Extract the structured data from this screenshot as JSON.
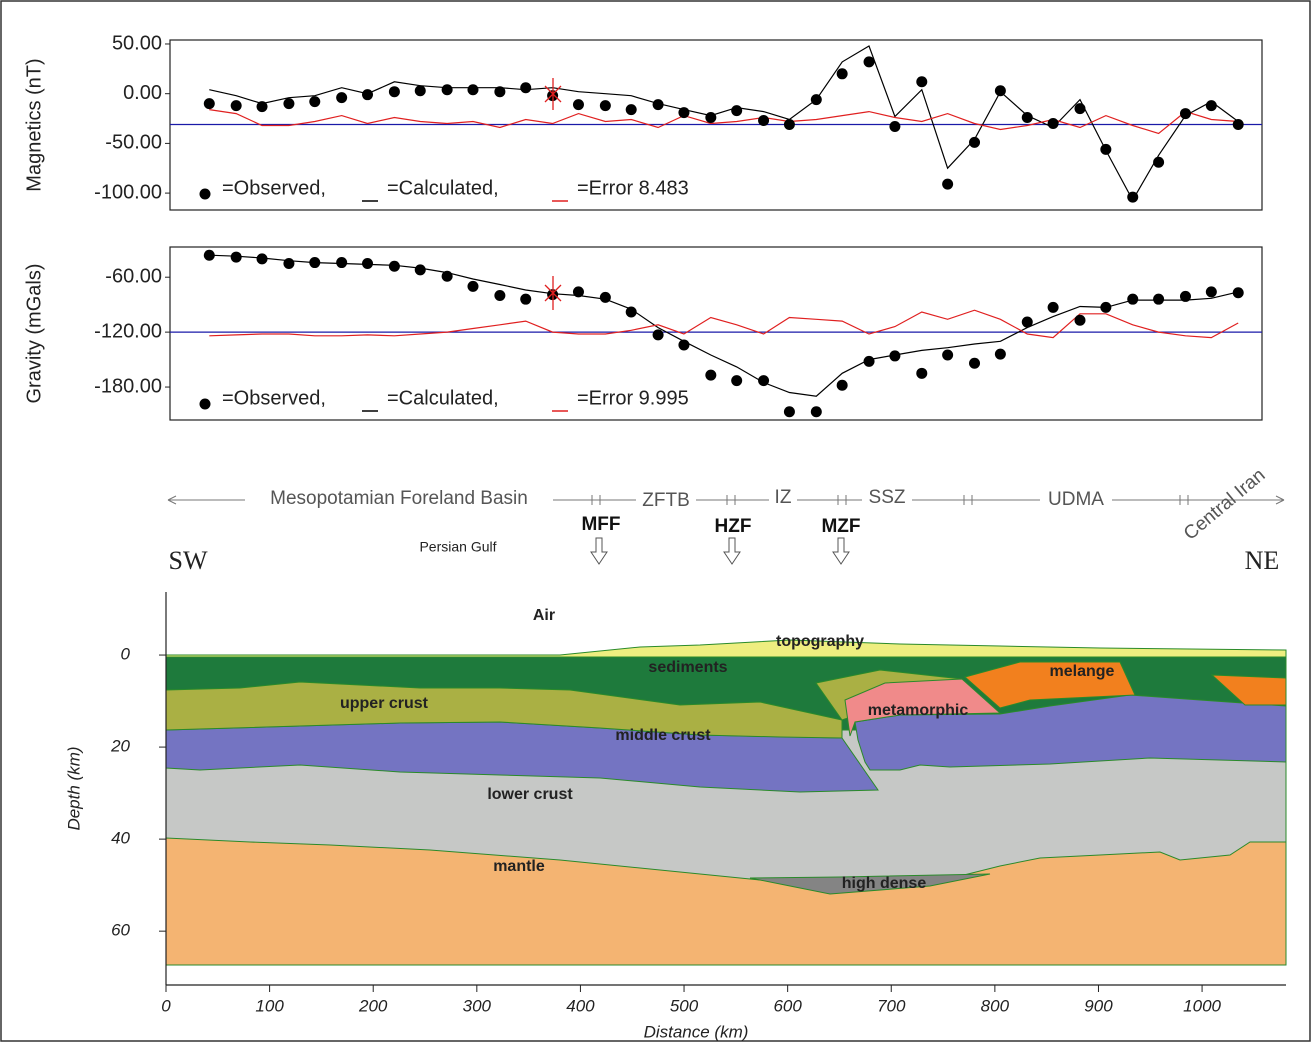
{
  "chart_data": [
    {
      "type": "line",
      "ylabel": "Magnetics (nT)",
      "legend": "lower-left",
      "xlim": [
        4,
        1060
      ],
      "ylim": [
        -117,
        54
      ],
      "yticks": [
        {
          "value": 50,
          "label": "50.00"
        },
        {
          "value": 0,
          "label": "0.00"
        },
        {
          "value": -50,
          "label": "-50.00"
        },
        {
          "value": -100,
          "label": "-100.00"
        }
      ],
      "reference_line": {
        "value": -31,
        "color": "#1a1aa8"
      },
      "x": [
        42,
        68,
        93,
        119,
        144,
        170,
        195,
        221,
        246,
        272,
        297,
        323,
        348,
        374,
        399,
        425,
        450,
        476,
        501,
        527,
        552,
        578,
        603,
        629,
        654,
        680,
        705,
        731,
        756,
        782,
        807,
        833,
        858,
        884,
        909,
        935,
        960,
        986,
        1011,
        1037
      ],
      "series": [
        {
          "name": "=Observed,",
          "color": "#000000",
          "style": "marker",
          "values": [
            -10,
            -12,
            -13,
            -10,
            -8,
            -4,
            -1,
            2,
            3,
            4,
            4,
            2,
            6,
            -2,
            -11,
            -12,
            -16,
            -11,
            -19,
            -24,
            -17,
            -27,
            -31,
            -6,
            20,
            32,
            -33,
            12,
            -91,
            -49,
            3,
            -24,
            -30,
            -15,
            -56,
            -104,
            -69,
            -20,
            -12,
            -31
          ]
        },
        {
          "name": "=Calculated,",
          "color": "#000000",
          "style": "line",
          "values": [
            4,
            -2,
            -10,
            -4,
            -2,
            6,
            0,
            12,
            8,
            6,
            6,
            6,
            4,
            6,
            2,
            0,
            -2,
            -10,
            -16,
            -22,
            -14,
            -18,
            -26,
            -6,
            32,
            48,
            -23,
            4,
            -75,
            -46,
            2,
            -22,
            -34,
            -6,
            -57,
            -107,
            -62,
            -22,
            -8,
            -28
          ]
        },
        {
          "name": "=Error 8.483",
          "color": "#e02020",
          "style": "line",
          "values": [
            -16,
            -20,
            -32,
            -32,
            -28,
            -22,
            -30,
            -24,
            -28,
            -30,
            -28,
            -34,
            -26,
            -30,
            -20,
            -28,
            -26,
            -34,
            -22,
            -30,
            -28,
            -24,
            -28,
            -26,
            -22,
            -18,
            -24,
            -28,
            -20,
            -30,
            -36,
            -32,
            -26,
            -34,
            -22,
            -32,
            -40,
            -18,
            -26,
            -28
          ]
        }
      ]
    },
    {
      "type": "line",
      "ylabel": "Gravity (mGals)",
      "legend": "lower-left",
      "xlim": [
        4,
        1060
      ],
      "ylim": [
        -216,
        -27
      ],
      "yticks": [
        {
          "value": -60,
          "label": "-60.00"
        },
        {
          "value": -120,
          "label": "-120.00"
        },
        {
          "value": -180,
          "label": "-180.00"
        }
      ],
      "reference_line": {
        "value": -120,
        "color": "#1a1aa8"
      },
      "x": [
        42,
        68,
        93,
        119,
        144,
        170,
        195,
        221,
        246,
        272,
        297,
        323,
        348,
        374,
        399,
        425,
        450,
        476,
        501,
        527,
        552,
        578,
        603,
        629,
        654,
        680,
        705,
        731,
        756,
        782,
        807,
        833,
        858,
        884,
        909,
        935,
        960,
        986,
        1011,
        1037
      ],
      "series": [
        {
          "name": "=Observed,",
          "color": "#000000",
          "style": "marker",
          "values": [
            -36,
            -38,
            -40,
            -45,
            -44,
            -44,
            -45,
            -48,
            -52,
            -59,
            -70,
            -80,
            -84,
            -79,
            -76,
            -82,
            -98,
            -123,
            -134,
            -167,
            -173,
            -173,
            -207,
            -207,
            -178,
            -152,
            -146,
            -165,
            -145,
            -154,
            -144,
            -109,
            -93,
            -107,
            -93,
            -84,
            -84,
            -81,
            -76,
            -77
          ]
        },
        {
          "name": "=Calculated,",
          "color": "#000000",
          "style": "line",
          "values": [
            -36,
            -37,
            -39,
            -42,
            -44,
            -45,
            -46,
            -47,
            -50,
            -55,
            -62,
            -68,
            -74,
            -78,
            -80,
            -84,
            -95,
            -115,
            -130,
            -145,
            -158,
            -175,
            -186,
            -190,
            -165,
            -150,
            -145,
            -140,
            -137,
            -133,
            -130,
            -115,
            -103,
            -92,
            -93,
            -85,
            -85,
            -85,
            -83,
            -76
          ]
        },
        {
          "name": "=Error 9.995",
          "color": "#e02020",
          "style": "line",
          "values": [
            -124,
            -123,
            -122,
            -122,
            -124,
            -124,
            -123,
            -124,
            -122,
            -120,
            -116,
            -112,
            -108,
            -120,
            -122,
            -122,
            -118,
            -112,
            -122,
            -104,
            -112,
            -122,
            -104,
            -106,
            -108,
            -122,
            -114,
            -98,
            -106,
            -96,
            -106,
            -122,
            -126,
            -100,
            -100,
            -112,
            -120,
            -124,
            -126,
            -110
          ]
        }
      ]
    },
    {
      "type": "section",
      "xlabel": "Distance (km)",
      "ylabel": "Depth (km)",
      "xlim": [
        0,
        1081
      ],
      "ylim": [
        -13.7,
        71.7
      ],
      "y_inverted": true,
      "xticks": [
        0,
        100,
        200,
        300,
        400,
        500,
        600,
        700,
        800,
        900,
        1000
      ],
      "yticks": [
        0,
        20,
        40,
        60
      ],
      "sides": [
        "SW",
        "NE"
      ],
      "zones": [
        "Mesopotamian Foreland Basin",
        "ZFTB",
        "IZ",
        "SSZ",
        "UDMA",
        "Central Iran"
      ],
      "faults": [
        "MFF",
        "HZF",
        "MZF"
      ],
      "annotation": "Persian Gulf",
      "layers": [
        "Air",
        "topography",
        "sediments",
        "upper crust",
        "metamorphic",
        "melange",
        "middle crust",
        "lower crust",
        "mantle",
        "high dense"
      ]
    }
  ]
}
